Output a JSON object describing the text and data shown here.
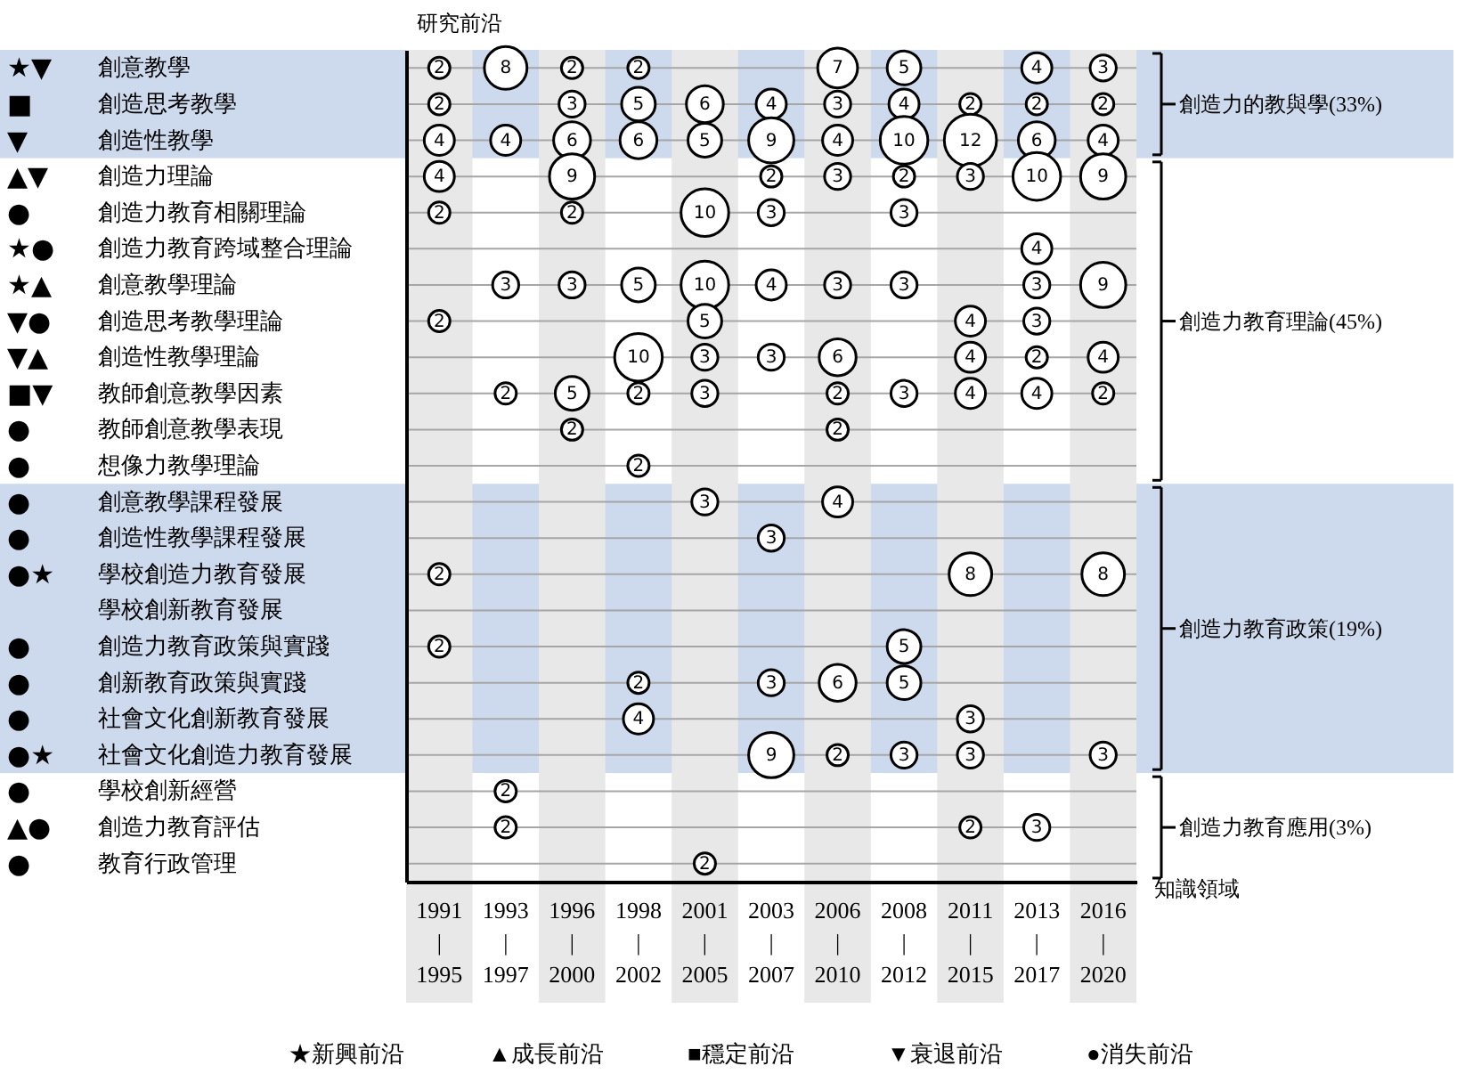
{
  "chart_data": {
    "type": "heatmap",
    "xlabel": "知識領域",
    "ylabel": "研究前沿",
    "categories": [
      "1991\n|\n1995",
      "1993\n|\n1997",
      "1996\n|\n2000",
      "1998\n|\n2002",
      "2001\n|\n2005",
      "2003\n|\n2007",
      "2006\n|\n2010",
      "2008\n|\n2012",
      "2011\n|\n2015",
      "2013\n|\n2017",
      "2016\n|\n2020"
    ],
    "y_categories": [
      "創意教學",
      "創造思考教學",
      "創造性教學",
      "創造力理論",
      "創造力教育相關理論",
      "創造力教育跨域整合理論",
      "創意教學理論",
      "創造思考教學理論",
      "創造性教學理論",
      "教師創意教學因素",
      "教師創意教學表現",
      "想像力教學理論",
      "創意教學課程發展",
      "創造性教學課程發展",
      "學校創造力教育發展",
      "學校創新教育發展",
      "創造力教育政策與實踐",
      "創新教育政策與實踐",
      "社會文化創新教育發展",
      "社會文化創造力教育發展",
      "學校創新經營",
      "創造力教育評估",
      "教育行政管理"
    ],
    "y2_categories": [
      "★▼",
      "■",
      "▼",
      "▲▼",
      "●",
      "★●",
      "★▲",
      "▼●",
      "▼▲",
      "■▼",
      "●",
      "●",
      "●",
      "●",
      "●★",
      null,
      "●",
      "●",
      "●",
      "●★",
      "●",
      "▲●",
      "●"
    ],
    "cells": [
      [
        2,
        8,
        2,
        2,
        null,
        null,
        7,
        5,
        null,
        4,
        3
      ],
      [
        2,
        null,
        3,
        5,
        6,
        4,
        3,
        4,
        2,
        2,
        2
      ],
      [
        4,
        4,
        6,
        6,
        5,
        9,
        4,
        10,
        12,
        6,
        4
      ],
      [
        4,
        null,
        9,
        null,
        null,
        2,
        3,
        2,
        3,
        10,
        9
      ],
      [
        2,
        null,
        2,
        null,
        10,
        3,
        null,
        3,
        null,
        null,
        null
      ],
      [
        null,
        null,
        null,
        null,
        null,
        null,
        null,
        null,
        null,
        4,
        null
      ],
      [
        null,
        3,
        3,
        5,
        10,
        4,
        3,
        3,
        null,
        3,
        9
      ],
      [
        2,
        null,
        null,
        null,
        5,
        null,
        null,
        null,
        4,
        3,
        null
      ],
      [
        null,
        null,
        null,
        10,
        3,
        3,
        6,
        null,
        4,
        2,
        4
      ],
      [
        null,
        2,
        5,
        2,
        3,
        null,
        2,
        3,
        4,
        4,
        2
      ],
      [
        null,
        null,
        2,
        null,
        null,
        null,
        2,
        null,
        null,
        null,
        null
      ],
      [
        null,
        null,
        null,
        2,
        null,
        null,
        null,
        null,
        null,
        null,
        null
      ],
      [
        null,
        null,
        null,
        null,
        3,
        null,
        4,
        null,
        null,
        null,
        null
      ],
      [
        null,
        null,
        null,
        null,
        null,
        3,
        null,
        null,
        null,
        null,
        null
      ],
      [
        2,
        null,
        null,
        null,
        null,
        null,
        null,
        null,
        8,
        null,
        8
      ],
      [
        null,
        null,
        null,
        null,
        null,
        null,
        null,
        null,
        null,
        null,
        null
      ],
      [
        2,
        null,
        null,
        null,
        null,
        null,
        null,
        5,
        null,
        null,
        null
      ],
      [
        null,
        null,
        null,
        2,
        null,
        3,
        6,
        5,
        null,
        null,
        null
      ],
      [
        null,
        null,
        null,
        4,
        null,
        null,
        null,
        null,
        3,
        null,
        null
      ],
      [
        null,
        null,
        null,
        null,
        null,
        9,
        2,
        3,
        3,
        null,
        3
      ],
      [
        null,
        2,
        null,
        null,
        null,
        null,
        null,
        null,
        null,
        null,
        null
      ],
      [
        null,
        2,
        null,
        null,
        null,
        null,
        null,
        null,
        2,
        3,
        null
      ],
      [
        null,
        null,
        null,
        null,
        2,
        null,
        null,
        null,
        null,
        null,
        null
      ]
    ],
    "data_labels": true,
    "grid": "y",
    "bands": [
      {
        "axis": "y",
        "from": "創意教學",
        "to": "創造性教學",
        "label": "創造力的教與學(33%)",
        "color": "#cdd9ec"
      },
      {
        "axis": "y",
        "from": "創造力理論",
        "to": "想像力教學理論",
        "label": "創造力教育理論(45%)",
        "color": "#ffffff"
      },
      {
        "axis": "y",
        "from": "創意教學課程發展",
        "to": "社會文化創造力教育發展",
        "label": "創造力教育政策(19%)",
        "color": "#cdd9ec"
      },
      {
        "axis": "y",
        "from": "學校創新經營",
        "to": "教育行政管理",
        "label": "創造力教育應用(3%)",
        "color": "#ffffff"
      },
      {
        "axis": "x",
        "from": "1991\n|\n1995",
        "to": "1991\n|\n1995",
        "color": "#e8e8e8"
      },
      {
        "axis": "x",
        "from": "1996\n|\n2000",
        "to": "1996\n|\n2000",
        "color": "#e8e8e8"
      },
      {
        "axis": "x",
        "from": "2001\n|\n2005",
        "to": "2001\n|\n2005",
        "color": "#e8e8e8"
      },
      {
        "axis": "x",
        "from": "2006\n|\n2010",
        "to": "2006\n|\n2010",
        "color": "#e8e8e8"
      },
      {
        "axis": "x",
        "from": "2011\n|\n2015",
        "to": "2011\n|\n2015",
        "color": "#e8e8e8"
      },
      {
        "axis": "x",
        "from": "2016\n|\n2020",
        "to": "2016\n|\n2020",
        "color": "#e8e8e8"
      }
    ],
    "annotations": [
      "★新興前沿",
      "▲成長前沿",
      "■穩定前沿",
      "▼衰退前沿",
      "●消失前沿"
    ]
  }
}
